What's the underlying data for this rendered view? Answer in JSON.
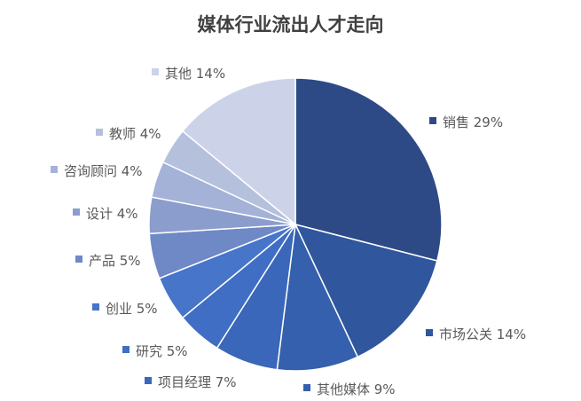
{
  "chart_data": {
    "type": "pie",
    "title": "媒体行业流出人才走向",
    "categories": [
      "销售",
      "市场公关",
      "其他媒体",
      "项目经理",
      "研究",
      "创业",
      "产品",
      "设计",
      "咨询顾问",
      "教师",
      "其他"
    ],
    "values": [
      29,
      14,
      9,
      7,
      5,
      5,
      5,
      4,
      4,
      4,
      14
    ],
    "labels": [
      "销售 29%",
      "市场公关 14%",
      "其他媒体 9%",
      "项目经理 7%",
      "研究 5%",
      "创业 5%",
      "产品 5%",
      "设计 4%",
      "咨询顾问 4%",
      "教师 4%",
      "其他 14%"
    ],
    "colors": [
      "#2e4a86",
      "#30569d",
      "#3460ad",
      "#3a67b9",
      "#3f6ec4",
      "#4775ca",
      "#6f88c6",
      "#8b9dcd",
      "#a3b2d6",
      "#b5c0dd",
      "#ccd3e8"
    ],
    "legend": "none"
  }
}
